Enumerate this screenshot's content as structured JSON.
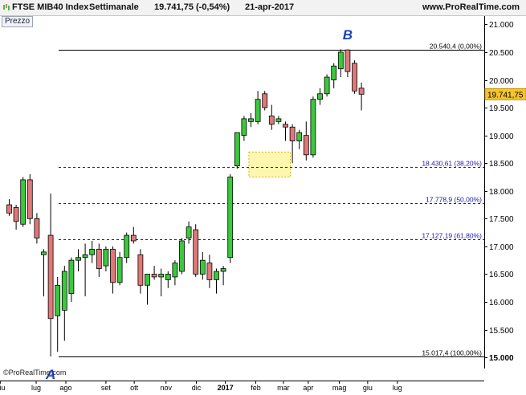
{
  "header": {
    "instrument": "FTSE MIB40 Index",
    "timeframe": "Settimanale",
    "quote": "19.741,75 (-0,54%)",
    "date": "21-apr-2017",
    "site": "www.ProRealTime.com"
  },
  "panel_label": "Prezzo",
  "copyright": "©ProRealTime.com",
  "chart_data": {
    "type": "candlestick",
    "title": "FTSE MIB40 Index",
    "ylim": [
      14800,
      21150
    ],
    "y_ticks": [
      15000,
      15500,
      16000,
      16500,
      17000,
      17500,
      18000,
      18500,
      19000,
      19500,
      20000,
      20500,
      21000
    ],
    "y_tick_labels": [
      "15.000",
      "15.500",
      "16.000",
      "16.500",
      "17.000",
      "17.500",
      "18.000",
      "18.500",
      "19.000",
      "19.500",
      "20.000",
      "20.500",
      "21.000"
    ],
    "x_labels": [
      {
        "label": "giu",
        "index": -1.3,
        "bold": false
      },
      {
        "label": "lug",
        "index": 3.9,
        "bold": false
      },
      {
        "label": "ago",
        "index": 8.2,
        "bold": false
      },
      {
        "label": "set",
        "index": 14.0,
        "bold": false
      },
      {
        "label": "ott",
        "index": 18.1,
        "bold": false
      },
      {
        "label": "nov",
        "index": 22.7,
        "bold": false
      },
      {
        "label": "dic",
        "index": 27.1,
        "bold": false
      },
      {
        "label": "2017",
        "index": 31.3,
        "bold": true
      },
      {
        "label": "feb",
        "index": 35.7,
        "bold": false
      },
      {
        "label": "mar",
        "index": 39.7,
        "bold": false
      },
      {
        "label": "apr",
        "index": 43.3,
        "bold": false
      },
      {
        "label": "mag",
        "index": 47.8,
        "bold": false
      },
      {
        "label": "giu",
        "index": 51.9,
        "bold": false
      },
      {
        "label": "lug",
        "index": 56.2,
        "bold": false
      }
    ],
    "candles": [
      {
        "o": 17750,
        "h": 17850,
        "l": 17550,
        "c": 17600
      },
      {
        "o": 17700,
        "h": 17750,
        "l": 17300,
        "c": 17450
      },
      {
        "o": 17400,
        "h": 18250,
        "l": 17350,
        "c": 18200
      },
      {
        "o": 18200,
        "h": 18300,
        "l": 17400,
        "c": 17500
      },
      {
        "o": 17500,
        "h": 17600,
        "l": 17050,
        "c": 17150
      },
      {
        "o": 16850,
        "h": 16950,
        "l": 16100,
        "c": 16900
      },
      {
        "o": 17200,
        "h": 17950,
        "l": 15017,
        "c": 15700
      },
      {
        "o": 15750,
        "h": 16450,
        "l": 15100,
        "c": 16300
      },
      {
        "o": 15850,
        "h": 16650,
        "l": 15300,
        "c": 16550
      },
      {
        "o": 16150,
        "h": 16800,
        "l": 16000,
        "c": 16750
      },
      {
        "o": 16750,
        "h": 16950,
        "l": 16550,
        "c": 16800
      },
      {
        "o": 16800,
        "h": 17050,
        "l": 16100,
        "c": 16850
      },
      {
        "o": 16850,
        "h": 17100,
        "l": 16700,
        "c": 16950
      },
      {
        "o": 16950,
        "h": 17050,
        "l": 16450,
        "c": 16600
      },
      {
        "o": 16650,
        "h": 17000,
        "l": 16550,
        "c": 16950
      },
      {
        "o": 16950,
        "h": 17000,
        "l": 16150,
        "c": 16350
      },
      {
        "o": 16350,
        "h": 16900,
        "l": 16300,
        "c": 16800
      },
      {
        "o": 16800,
        "h": 17250,
        "l": 16700,
        "c": 17200
      },
      {
        "o": 17200,
        "h": 17350,
        "l": 17050,
        "c": 17100
      },
      {
        "o": 16850,
        "h": 16950,
        "l": 16150,
        "c": 16300
      },
      {
        "o": 16300,
        "h": 16500,
        "l": 15950,
        "c": 16500
      },
      {
        "o": 16500,
        "h": 16650,
        "l": 16400,
        "c": 16450
      },
      {
        "o": 16450,
        "h": 16600,
        "l": 16100,
        "c": 16500
      },
      {
        "o": 16400,
        "h": 16550,
        "l": 16250,
        "c": 16500
      },
      {
        "o": 16450,
        "h": 16750,
        "l": 16300,
        "c": 16700
      },
      {
        "o": 16550,
        "h": 17150,
        "l": 16500,
        "c": 17100
      },
      {
        "o": 17150,
        "h": 17450,
        "l": 17050,
        "c": 17350
      },
      {
        "o": 17300,
        "h": 17400,
        "l": 16450,
        "c": 16500
      },
      {
        "o": 16500,
        "h": 16900,
        "l": 16400,
        "c": 16750
      },
      {
        "o": 16700,
        "h": 16850,
        "l": 16250,
        "c": 16400
      },
      {
        "o": 16400,
        "h": 16600,
        "l": 16150,
        "c": 16550
      },
      {
        "o": 16550,
        "h": 16650,
        "l": 16300,
        "c": 16600
      },
      {
        "o": 16800,
        "h": 18300,
        "l": 16700,
        "c": 18250
      },
      {
        "o": 18450,
        "h": 19050,
        "l": 18400,
        "c": 19050
      },
      {
        "o": 19000,
        "h": 19350,
        "l": 18900,
        "c": 19300
      },
      {
        "o": 19250,
        "h": 19400,
        "l": 19150,
        "c": 19300
      },
      {
        "o": 19250,
        "h": 19800,
        "l": 19200,
        "c": 19650
      },
      {
        "o": 19750,
        "h": 19800,
        "l": 19450,
        "c": 19500
      },
      {
        "o": 19350,
        "h": 19550,
        "l": 19100,
        "c": 19200
      },
      {
        "o": 19250,
        "h": 19350,
        "l": 19200,
        "c": 19300
      },
      {
        "o": 19200,
        "h": 19250,
        "l": 18900,
        "c": 19150
      },
      {
        "o": 19150,
        "h": 19200,
        "l": 18500,
        "c": 18900
      },
      {
        "o": 18900,
        "h": 19100,
        "l": 18750,
        "c": 19050
      },
      {
        "o": 19000,
        "h": 19250,
        "l": 18550,
        "c": 18650
      },
      {
        "o": 18650,
        "h": 19700,
        "l": 18600,
        "c": 19650
      },
      {
        "o": 19650,
        "h": 19850,
        "l": 19550,
        "c": 19750
      },
      {
        "o": 19750,
        "h": 20100,
        "l": 19700,
        "c": 20050
      },
      {
        "o": 20000,
        "h": 20300,
        "l": 19850,
        "c": 20250
      },
      {
        "o": 20200,
        "h": 20550,
        "l": 20050,
        "c": 20500
      },
      {
        "o": 20540,
        "h": 20550,
        "l": 20050,
        "c": 20150
      },
      {
        "o": 20300,
        "h": 20350,
        "l": 19750,
        "c": 19800
      },
      {
        "o": 19850,
        "h": 19950,
        "l": 19450,
        "c": 19741.75
      }
    ],
    "levels": [
      {
        "value": 20540.4,
        "label": "20.540,4 (0,00%)",
        "style": "solid",
        "color": "#000000"
      },
      {
        "value": 18430.61,
        "label": "18.430,61 (38,20%)",
        "style": "dashed",
        "color": "#1a1ab4"
      },
      {
        "value": 17778.9,
        "label": "17.778,9 (50,00%)",
        "style": "dashed",
        "color": "#1a1ab4"
      },
      {
        "value": 17127.19,
        "label": "17.127,19 (61,80%)",
        "style": "dashed",
        "color": "#1a1ab4"
      },
      {
        "value": 15017.4,
        "label": "15.017,4 (100,00%)",
        "style": "solid",
        "color": "#000000"
      }
    ],
    "point_labels": [
      {
        "text": "A",
        "index": 6,
        "value": 14900,
        "position": "below"
      },
      {
        "text": "B",
        "index": 49,
        "value": 20700,
        "position": "above"
      }
    ],
    "current_price": {
      "value": 19741.75,
      "label": "19.741,75"
    },
    "highlight_zone": {
      "from_index": 34.7,
      "to_index": 40.7,
      "low": 18250,
      "high": 18700
    },
    "colors": {
      "up": "#3cc83c",
      "down": "#e07878",
      "level": "#1a1ab4",
      "point_label": "#1a3fc0",
      "highlight": "#fff6b0",
      "current_price": "#f6c42a"
    }
  }
}
